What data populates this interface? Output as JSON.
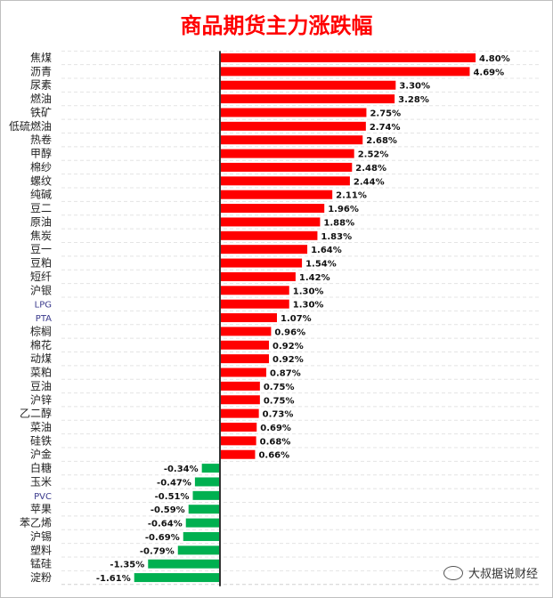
{
  "chart_data": {
    "type": "bar",
    "orientation": "horizontal",
    "title": "商品期货主力涨跌幅",
    "categories": [
      "焦煤",
      "沥青",
      "尿素",
      "燃油",
      "铁矿",
      "低硫燃油",
      "热卷",
      "甲醇",
      "棉纱",
      "螺纹",
      "纯碱",
      "豆二",
      "原油",
      "焦炭",
      "豆一",
      "豆粕",
      "短纤",
      "沪银",
      "LPG",
      "PTA",
      "棕榈",
      "棉花",
      "动煤",
      "菜粕",
      "豆油",
      "沪锌",
      "乙二醇",
      "菜油",
      "硅铁",
      "沪金",
      "白糖",
      "玉米",
      "PVC",
      "苹果",
      "苯乙烯",
      "沪锡",
      "塑料",
      "锰硅",
      "淀粉"
    ],
    "values": [
      4.8,
      4.69,
      3.3,
      3.28,
      2.75,
      2.74,
      2.68,
      2.52,
      2.48,
      2.44,
      2.11,
      1.96,
      1.88,
      1.83,
      1.64,
      1.54,
      1.42,
      1.3,
      1.3,
      1.07,
      0.96,
      0.92,
      0.92,
      0.87,
      0.75,
      0.75,
      0.73,
      0.69,
      0.68,
      0.66,
      -0.34,
      -0.47,
      -0.51,
      -0.59,
      -0.64,
      -0.69,
      -0.79,
      -1.35,
      -1.61
    ],
    "value_labels": [
      "4.80%",
      "4.69%",
      "3.30%",
      "3.28%",
      "2.75%",
      "2.74%",
      "2.68%",
      "2.52%",
      "2.48%",
      "2.44%",
      "2.11%",
      "1.96%",
      "1.88%",
      "1.83%",
      "1.64%",
      "1.54%",
      "1.42%",
      "1.30%",
      "1.30%",
      "1.07%",
      "0.96%",
      "0.92%",
      "0.92%",
      "0.87%",
      "0.75%",
      "0.75%",
      "0.73%",
      "0.69%",
      "0.68%",
      "0.66%",
      "-0.34%",
      "-0.47%",
      "-0.51%",
      "-0.59%",
      "-0.64%",
      "-0.69%",
      "-0.79%",
      "-1.35%",
      "-1.61%"
    ],
    "colors": {
      "positive": "#ff0000",
      "negative": "#00b050",
      "title": "#ff0000"
    },
    "grid": true,
    "legend": "none"
  },
  "watermark": "大叔据说财经"
}
